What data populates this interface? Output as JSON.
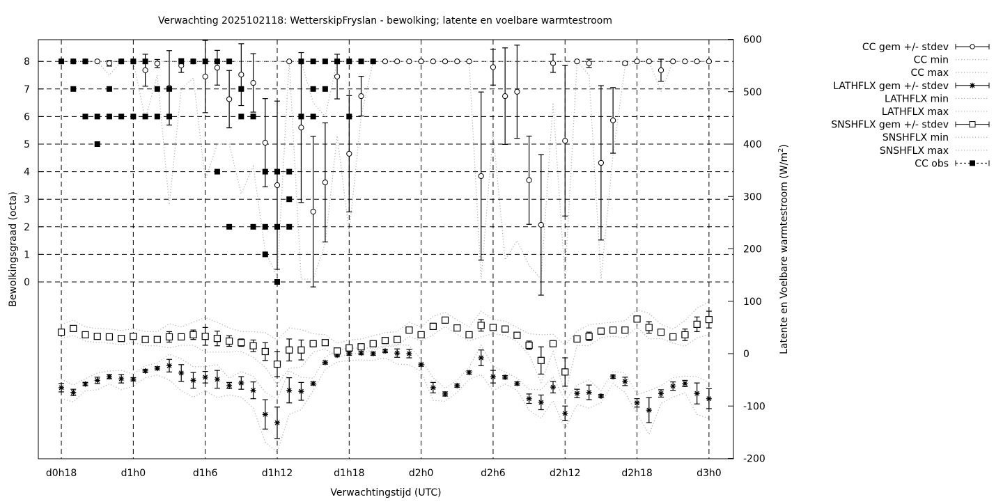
{
  "chart_data": {
    "type": "line",
    "title": "Verwachting 2025102118: WetterskipFryslan - bewolking; latente en voelbare warmtestroom",
    "xlabel": "Verwachtingstijd (UTC)",
    "ylabel": "Bewolkingsgraad (octa)",
    "y2label": "Latente en Voelbare warmtestroom (W/m",
    "y2label_sup": "2",
    "y2label_end": ")",
    "grid": true,
    "legend_position": "outside-right",
    "x_ticks": [
      {
        "hour": 0,
        "label": "d0h18"
      },
      {
        "hour": 6,
        "label": "d1h0"
      },
      {
        "hour": 12,
        "label": "d1h6"
      },
      {
        "hour": 18,
        "label": "d1h12"
      },
      {
        "hour": 24,
        "label": "d1h18"
      },
      {
        "hour": 30,
        "label": "d2h0"
      },
      {
        "hour": 36,
        "label": "d2h6"
      },
      {
        "hour": 42,
        "label": "d2h12"
      },
      {
        "hour": 48,
        "label": "d2h18"
      },
      {
        "hour": 54,
        "label": "d3h0"
      }
    ],
    "y_ticks": [
      "0",
      "1",
      "2",
      "3",
      "4",
      "5",
      "6",
      "7",
      "8"
    ],
    "y2_ticks": [
      "-200",
      "-100",
      "0",
      "100",
      "200",
      "300",
      "400",
      "500",
      "600"
    ],
    "ylim": [
      0,
      8
    ],
    "y2lim": [
      -200,
      600
    ],
    "x_hours": [
      0,
      1,
      2,
      3,
      4,
      5,
      6,
      7,
      8,
      9,
      10,
      11,
      12,
      13,
      14,
      15,
      16,
      17,
      18,
      19,
      20,
      21,
      22,
      23,
      24,
      25,
      26,
      27,
      28,
      29,
      30,
      31,
      32,
      33,
      34,
      35,
      36,
      37,
      38,
      39,
      40,
      41,
      42,
      43,
      44,
      45,
      46,
      47,
      48,
      49,
      50,
      51,
      52,
      53,
      54
    ],
    "series": [
      {
        "name": "CC gem +/- stdev",
        "axis": "left",
        "style": "circle-errorbar",
        "values": [
          8,
          8,
          8,
          8,
          7.93,
          8,
          8,
          7.68,
          7.92,
          7.04,
          7.85,
          8,
          7.45,
          7.77,
          6.63,
          7.52,
          7.22,
          5.05,
          3.51,
          8,
          5.6,
          2.55,
          3.61,
          7.45,
          4.65,
          6.74,
          8,
          8,
          8,
          8,
          8,
          8,
          8,
          8,
          8,
          3.84,
          7.79,
          6.74,
          6.9,
          3.69,
          2.07,
          7.93,
          5.12,
          8,
          7.93,
          4.32,
          5.86,
          7.93,
          8,
          8,
          7.68,
          8,
          8,
          8,
          8
        ],
        "stdev": [
          0,
          0,
          0,
          0,
          0.1,
          0,
          0,
          0.58,
          0.15,
          1.35,
          0.25,
          0,
          1.31,
          0.63,
          1.04,
          1.12,
          1.06,
          1.6,
          3.05,
          0,
          2.72,
          2.73,
          2.16,
          0.81,
          2.11,
          0.72,
          0,
          0,
          0,
          0,
          0,
          0,
          0,
          0,
          0,
          3.05,
          0.65,
          1.75,
          1.69,
          1.6,
          2.55,
          0.33,
          2.73,
          0,
          0.15,
          2.8,
          1.19,
          0.05,
          0,
          0,
          0.4,
          0,
          0,
          0,
          0
        ]
      },
      {
        "name": "CC min",
        "axis": "left",
        "style": "dotted",
        "values": [
          8,
          8,
          8,
          8,
          7.5,
          8,
          8,
          5.9,
          7.5,
          2.8,
          7.0,
          7.4,
          3.7,
          5.0,
          5.0,
          3.2,
          4.2,
          1.1,
          0.2,
          8,
          0.1,
          0.1,
          1.4,
          5.3,
          1.8,
          6.0,
          8,
          8,
          8,
          8,
          8,
          8,
          8,
          8,
          8,
          0.1,
          5.4,
          0.8,
          1.5,
          0.6,
          0.1,
          6.5,
          0.1,
          8,
          7.5,
          0.1,
          4.6,
          7.8,
          8,
          8,
          6.9,
          8,
          8,
          8,
          8
        ]
      },
      {
        "name": "CC max",
        "axis": "left",
        "style": "dotted",
        "values": [
          8,
          8,
          8,
          8,
          8,
          8,
          8,
          8,
          8,
          8,
          8,
          8,
          8,
          8,
          8,
          8,
          8,
          8,
          8,
          8,
          8,
          6.5,
          6.0,
          8,
          8,
          8,
          8,
          8,
          8,
          8,
          8,
          8,
          8,
          8,
          8,
          8,
          8,
          8,
          8,
          8,
          8,
          8,
          8,
          8,
          8,
          8,
          8,
          8,
          8,
          8,
          8,
          8,
          8,
          8,
          8
        ]
      },
      {
        "name": "LATHFLX gem +/- stdev",
        "axis": "right",
        "style": "asterisk-errorbar",
        "values": [
          -65,
          -74,
          -58,
          -51,
          -44,
          -48,
          -49,
          -33,
          -28,
          -23,
          -37,
          -51,
          -45,
          -49,
          -61,
          -56,
          -70,
          -116,
          -132,
          -70,
          -72,
          -57,
          -17,
          -3,
          0,
          1,
          0,
          5,
          1,
          0,
          -21,
          -65,
          -77,
          -61,
          -36,
          -8,
          -44,
          -45,
          -57,
          -86,
          -93,
          -64,
          -114,
          -76,
          -74,
          -81,
          -44,
          -53,
          -94,
          -108,
          -76,
          -62,
          -57,
          -76,
          -86
        ],
        "stdev": [
          8,
          6,
          3,
          6,
          4,
          8,
          3,
          3,
          3,
          12,
          16,
          15,
          11,
          17,
          6,
          12,
          16,
          28,
          30,
          24,
          17,
          3,
          3,
          3,
          3,
          3,
          3,
          3,
          8,
          8,
          3,
          10,
          4,
          3,
          3,
          15,
          12,
          3,
          3,
          9,
          14,
          11,
          14,
          8,
          14,
          3,
          3,
          8,
          8,
          24,
          7,
          8,
          6,
          20,
          19
        ]
      },
      {
        "name": "LATHFLX min",
        "axis": "right",
        "style": "dotted",
        "values": [
          -86,
          -92,
          -71,
          -69,
          -58,
          -69,
          -62,
          -46,
          -41,
          -50,
          -71,
          -83,
          -71,
          -84,
          -79,
          -83,
          -104,
          -169,
          -188,
          -116,
          -107,
          -70,
          -30,
          -16,
          -13,
          -12,
          -13,
          -8,
          -20,
          -21,
          -34,
          -89,
          -91,
          -74,
          -49,
          -40,
          -71,
          -58,
          -70,
          -108,
          -123,
          -90,
          -144,
          -97,
          -104,
          -94,
          -57,
          -74,
          -115,
          -154,
          -95,
          -83,
          -75,
          -116,
          -124
        ]
      },
      {
        "name": "LATHFLX max",
        "axis": "right",
        "style": "dotted",
        "values": [
          -49,
          -60,
          -48,
          -37,
          -33,
          -32,
          -39,
          -23,
          -18,
          -1,
          -10,
          -25,
          -25,
          -21,
          -47,
          -34,
          -43,
          -74,
          -87,
          -33,
          -45,
          -47,
          -7,
          7,
          10,
          11,
          10,
          15,
          17,
          16,
          -11,
          -46,
          -66,
          -51,
          -26,
          16,
          -24,
          -35,
          -47,
          -68,
          -69,
          -44,
          -90,
          -60,
          -50,
          -71,
          -34,
          -37,
          -78,
          -71,
          -61,
          -46,
          -43,
          -44,
          -55
        ]
      },
      {
        "name": "SNSHFLX gem +/- stdev",
        "axis": "right",
        "style": "square-errorbar",
        "values": [
          41,
          48,
          36,
          33,
          32,
          29,
          33,
          27,
          27,
          32,
          32,
          36,
          33,
          29,
          24,
          21,
          15,
          4,
          -20,
          7,
          7,
          19,
          21,
          5,
          11,
          13,
          19,
          25,
          27,
          45,
          36,
          52,
          64,
          49,
          36,
          54,
          50,
          47,
          35,
          16,
          -13,
          19,
          -35,
          28,
          33,
          43,
          45,
          45,
          66,
          50,
          41,
          32,
          36,
          56,
          65
        ],
        "stdev": [
          3,
          4,
          3,
          3,
          3,
          3,
          3,
          3,
          3,
          10,
          6,
          9,
          17,
          14,
          10,
          7,
          11,
          17,
          24,
          21,
          19,
          6,
          3,
          3,
          3,
          3,
          3,
          3,
          3,
          3,
          3,
          6,
          3,
          3,
          3,
          11,
          3,
          3,
          3,
          8,
          26,
          5,
          27,
          3,
          8,
          3,
          3,
          5,
          5,
          11,
          3,
          3,
          11,
          14,
          16
        ]
      },
      {
        "name": "SNSHFLX min",
        "axis": "right",
        "style": "dotted",
        "values": [
          29,
          35,
          24,
          21,
          20,
          17,
          21,
          15,
          15,
          11,
          16,
          16,
          3,
          3,
          3,
          4,
          -7,
          -26,
          -59,
          -28,
          -26,
          3,
          9,
          -7,
          -1,
          1,
          7,
          13,
          15,
          33,
          24,
          36,
          52,
          37,
          24,
          32,
          38,
          35,
          23,
          -2,
          -55,
          4,
          -78,
          16,
          15,
          31,
          33,
          30,
          51,
          28,
          29,
          20,
          14,
          30,
          36
        ]
      },
      {
        "name": "SNSHFLX max",
        "axis": "right",
        "style": "dotted",
        "values": [
          56,
          64,
          51,
          48,
          47,
          44,
          48,
          42,
          42,
          57,
          51,
          60,
          69,
          60,
          49,
          42,
          42,
          40,
          26,
          49,
          46,
          38,
          36,
          20,
          26,
          28,
          34,
          40,
          42,
          60,
          51,
          71,
          79,
          64,
          51,
          81,
          65,
          62,
          50,
          38,
          36,
          37,
          16,
          43,
          55,
          58,
          60,
          63,
          84,
          77,
          56,
          47,
          63,
          87,
          99
        ]
      },
      {
        "name": "CC obs",
        "axis": "left",
        "style": "filled-square",
        "points": [
          [
            0,
            8
          ],
          [
            1,
            8
          ],
          [
            1,
            7
          ],
          [
            2,
            8
          ],
          [
            2,
            6
          ],
          [
            3,
            6
          ],
          [
            3,
            5
          ],
          [
            4,
            7
          ],
          [
            4,
            6
          ],
          [
            5,
            8
          ],
          [
            5,
            6
          ],
          [
            6,
            8
          ],
          [
            6,
            6
          ],
          [
            7,
            8
          ],
          [
            7,
            6
          ],
          [
            8,
            7
          ],
          [
            8,
            6
          ],
          [
            9,
            7
          ],
          [
            9,
            6
          ],
          [
            10,
            8
          ],
          [
            11,
            8
          ],
          [
            12,
            8
          ],
          [
            13,
            8
          ],
          [
            13,
            4
          ],
          [
            14,
            8
          ],
          [
            14,
            2
          ],
          [
            15,
            7
          ],
          [
            15,
            6
          ],
          [
            16,
            6
          ],
          [
            16,
            2
          ],
          [
            17,
            4
          ],
          [
            17,
            2
          ],
          [
            17,
            1
          ],
          [
            18,
            4
          ],
          [
            18,
            2
          ],
          [
            18,
            0
          ],
          [
            19,
            4
          ],
          [
            19,
            3
          ],
          [
            19,
            2
          ],
          [
            20,
            8
          ],
          [
            20,
            6
          ],
          [
            21,
            8
          ],
          [
            21,
            7
          ],
          [
            21,
            6
          ],
          [
            22,
            8
          ],
          [
            22,
            7
          ],
          [
            23,
            8
          ],
          [
            24,
            8
          ],
          [
            24,
            6
          ],
          [
            25,
            8
          ],
          [
            26,
            8
          ]
        ]
      }
    ],
    "colors": {
      "axes": "#000000",
      "minmax": "#b8b8b8",
      "markers": "#000000"
    }
  }
}
